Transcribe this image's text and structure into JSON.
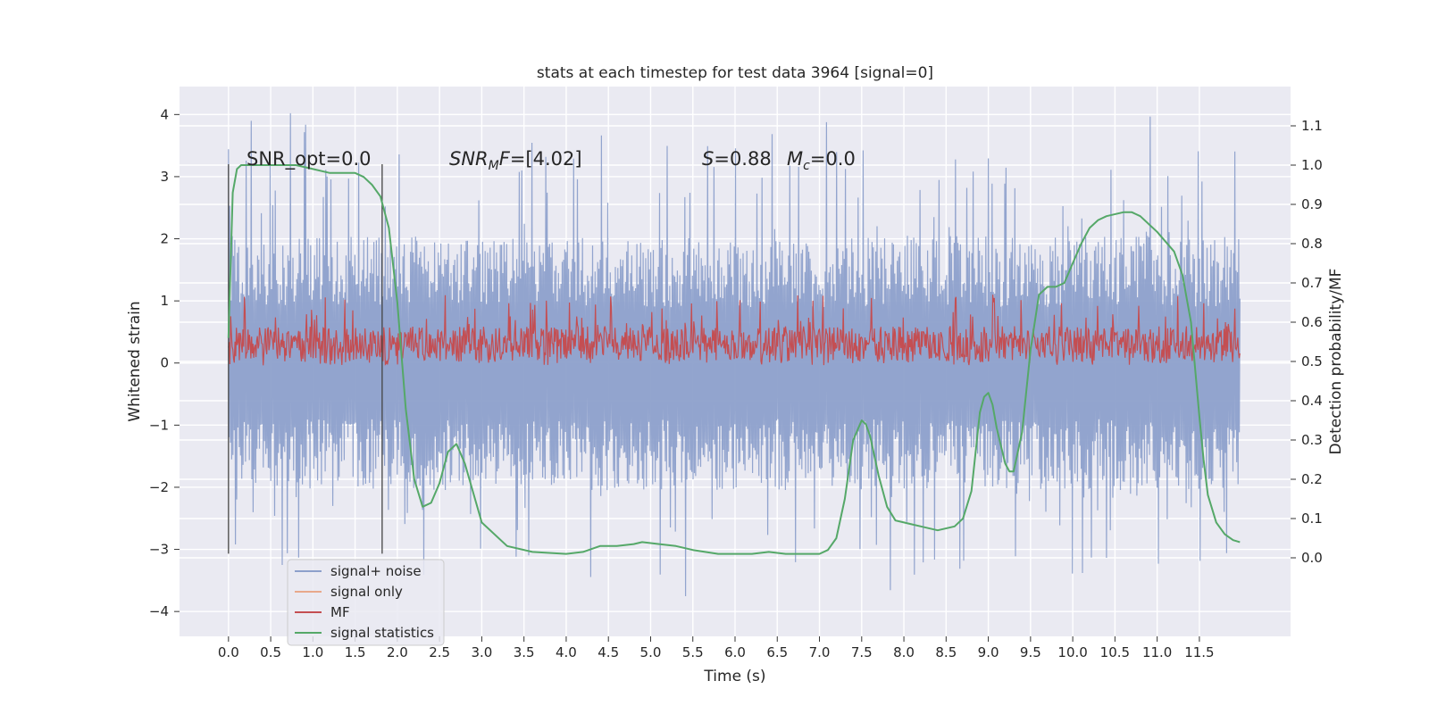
{
  "chart_data": {
    "type": "line",
    "title": "stats at each timestep for test data 3964 [signal=0]",
    "xlabel": "Time (s)",
    "ylabel_left": "Whitened strain",
    "ylabel_right": "Detection probability/MF",
    "xlim": [
      -0.58,
      12.58
    ],
    "ylim_left": [
      -4.4,
      4.45
    ],
    "ylim_right": [
      -0.2,
      1.2
    ],
    "x_ticks": [
      0.0,
      0.5,
      1.0,
      1.5,
      2.0,
      2.5,
      3.0,
      3.5,
      4.0,
      4.5,
      5.0,
      5.5,
      6.0,
      6.5,
      7.0,
      7.5,
      8.0,
      8.5,
      9.0,
      9.5,
      10.0,
      10.5,
      11.0,
      11.5
    ],
    "x_tick_labels": [
      "0.0",
      "0.5",
      "1.0",
      "1.5",
      "2.0",
      "2.5",
      "3.0",
      "3.5",
      "4.0",
      "4.5",
      "5.0",
      "5.5",
      "6.0",
      "6.5",
      "7.0",
      "7.5",
      "8.0",
      "8.5",
      "9.0",
      "9.5",
      "10.0",
      "10.5",
      "11.0",
      "11.5"
    ],
    "y_left_ticks": [
      4,
      3,
      2,
      1,
      0,
      -1,
      -2,
      -3,
      -4
    ],
    "y_left_tick_labels": [
      "4",
      "3",
      "2",
      "1",
      "0",
      "−1",
      "−2",
      "−3",
      "−4"
    ],
    "y_right_ticks": [
      1.1,
      1.0,
      0.9,
      0.8,
      0.7,
      0.6,
      0.5,
      0.4,
      0.3,
      0.2,
      0.1,
      0.0
    ],
    "y_right_tick_labels": [
      "1.1",
      "1.0",
      "0.9",
      "0.8",
      "0.7",
      "0.6",
      "0.5",
      "0.4",
      "0.3",
      "0.2",
      "0.1",
      "0.0"
    ],
    "grid": true,
    "legend_position": "lower-left",
    "window_markers": [
      0.0,
      1.82
    ],
    "window_y_range": [
      -3.07,
      3.2
    ],
    "annotations": {
      "snr_opt": "SNR_opt=0.0",
      "snr_mf_name": "SNR",
      "snr_mf_sub": "M",
      "snr_mf_rest": "F",
      "snr_mf_value": "=[4.02]",
      "s_name": "S",
      "s_value": "=0.88",
      "mc_name": "M",
      "mc_sub": "c",
      "mc_value": "=0.0"
    },
    "series": [
      {
        "name": "signal+ noise",
        "axis": "left",
        "color": "#8da0cb",
        "kind": "noise",
        "x_range": [
          0.0,
          11.98
        ],
        "typical_range": [
          -2.0,
          2.0
        ],
        "peak_range": [
          -3.9,
          4.1
        ]
      },
      {
        "name": "signal only",
        "axis": "left",
        "color": "#e8a98b",
        "kind": "flat"
      },
      {
        "name": "MF",
        "axis": "right",
        "color": "#c44e52",
        "kind": "band",
        "x_range": [
          0.0,
          11.98
        ],
        "base_range": [
          0.5,
          0.59
        ],
        "peak_max": 0.67
      },
      {
        "name": "signal statistics",
        "axis": "right",
        "color": "#55a868",
        "kind": "curve",
        "x": [
          0.0,
          0.05,
          0.1,
          0.15,
          0.2,
          0.3,
          0.5,
          0.8,
          1.0,
          1.2,
          1.35,
          1.5,
          1.6,
          1.7,
          1.8,
          1.9,
          2.0,
          2.1,
          2.2,
          2.3,
          2.4,
          2.5,
          2.6,
          2.7,
          2.8,
          3.0,
          3.3,
          3.6,
          4.0,
          4.2,
          4.4,
          4.6,
          4.8,
          4.9,
          5.1,
          5.3,
          5.5,
          5.8,
          6.0,
          6.2,
          6.4,
          6.6,
          6.8,
          7.0,
          7.1,
          7.2,
          7.3,
          7.4,
          7.5,
          7.55,
          7.6,
          7.7,
          7.8,
          7.9,
          8.0,
          8.2,
          8.4,
          8.6,
          8.7,
          8.8,
          8.9,
          8.95,
          9.0,
          9.05,
          9.1,
          9.2,
          9.25,
          9.3,
          9.4,
          9.5,
          9.6,
          9.7,
          9.8,
          9.9,
          10.0,
          10.1,
          10.2,
          10.3,
          10.4,
          10.6,
          10.7,
          10.8,
          11.0,
          11.2,
          11.3,
          11.4,
          11.5,
          11.55,
          11.6,
          11.7,
          11.8,
          11.9,
          11.98
        ],
        "y": [
          0.56,
          0.93,
          0.99,
          1.0,
          1.0,
          1.0,
          1.0,
          1.0,
          0.99,
          0.98,
          0.98,
          0.98,
          0.97,
          0.95,
          0.92,
          0.84,
          0.65,
          0.38,
          0.2,
          0.13,
          0.14,
          0.19,
          0.27,
          0.29,
          0.24,
          0.09,
          0.03,
          0.015,
          0.01,
          0.015,
          0.03,
          0.03,
          0.035,
          0.04,
          0.035,
          0.03,
          0.02,
          0.01,
          0.01,
          0.01,
          0.015,
          0.01,
          0.01,
          0.01,
          0.02,
          0.05,
          0.15,
          0.3,
          0.35,
          0.34,
          0.31,
          0.21,
          0.13,
          0.095,
          0.09,
          0.08,
          0.07,
          0.08,
          0.1,
          0.17,
          0.37,
          0.41,
          0.42,
          0.39,
          0.33,
          0.24,
          0.22,
          0.22,
          0.32,
          0.53,
          0.67,
          0.69,
          0.69,
          0.7,
          0.75,
          0.8,
          0.84,
          0.86,
          0.87,
          0.88,
          0.88,
          0.87,
          0.83,
          0.78,
          0.72,
          0.6,
          0.36,
          0.25,
          0.16,
          0.09,
          0.06,
          0.045,
          0.04
        ]
      }
    ]
  }
}
